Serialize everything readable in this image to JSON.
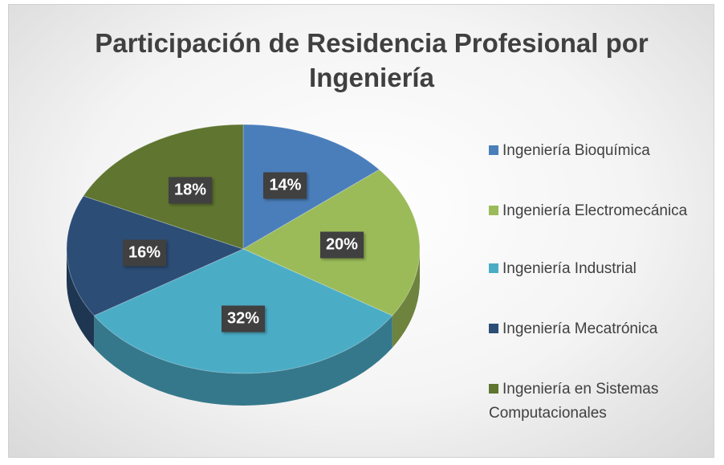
{
  "chart_data": {
    "type": "pie",
    "title": "Participación de Residencia Profesional por Ingeniería",
    "categories": [
      "Ingeniería Bioquímica",
      "Ingeniería Electromecánica",
      "Ingeniería Industrial",
      "Ingeniería Mecatrónica",
      "Ingeniería en Sistemas Computacionales"
    ],
    "values": [
      14,
      20,
      32,
      16,
      18
    ],
    "value_labels": [
      "14%",
      "20%",
      "32%",
      "16%",
      "18%"
    ],
    "colors": [
      "#4a7ebb",
      "#9bbb59",
      "#4bacc6",
      "#2c4d75",
      "#5f7530"
    ]
  }
}
